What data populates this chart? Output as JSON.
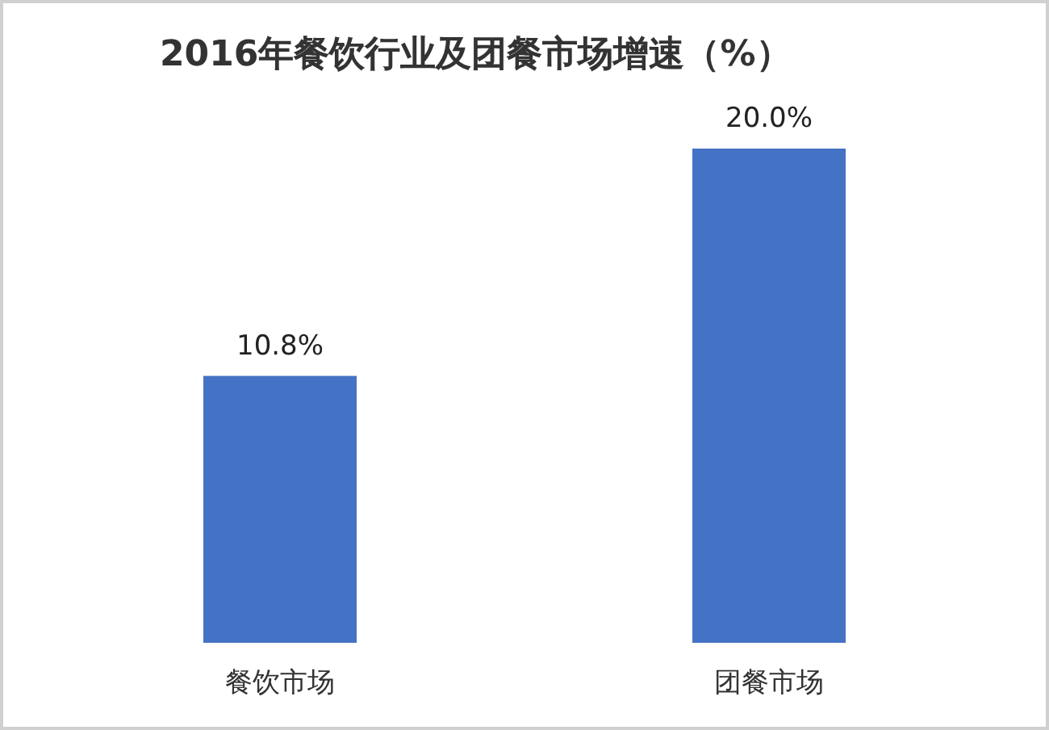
{
  "chart_data": {
    "type": "bar",
    "title": "2016年餐饮行业及团餐市场增速（%）",
    "categories": [
      "餐饮市场",
      "团餐市场"
    ],
    "values": [
      10.8,
      20.0
    ],
    "value_labels": [
      "10.8%",
      "20.0%"
    ],
    "color": "#4472c4"
  }
}
